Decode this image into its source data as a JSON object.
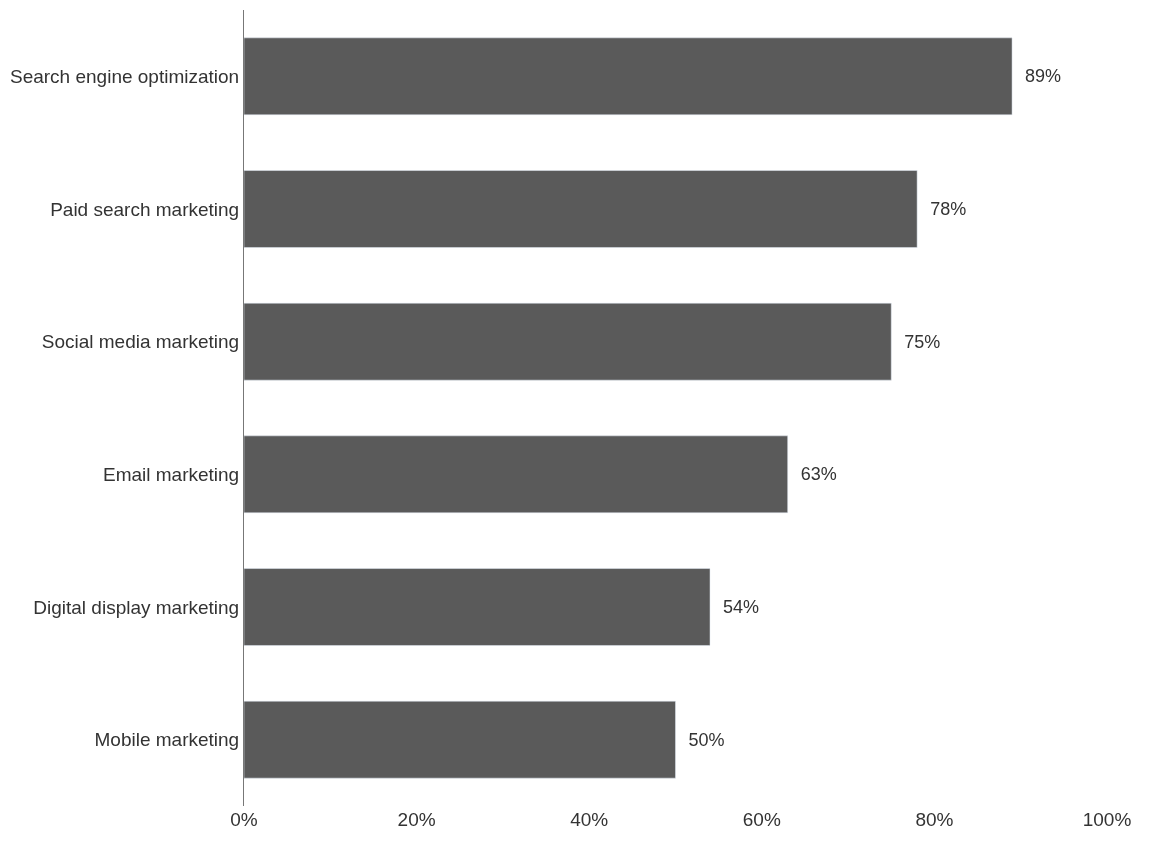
{
  "chart_data": {
    "type": "bar",
    "orientation": "horizontal",
    "categories": [
      "Search engine optimization",
      "Paid search marketing",
      "Social media marketing",
      "Email marketing",
      "Digital display marketing",
      "Mobile marketing"
    ],
    "values": [
      89,
      78,
      75,
      63,
      54,
      50
    ],
    "value_labels": [
      "89%",
      "78%",
      "75%",
      "63%",
      "54%",
      "50%"
    ],
    "color": "#5a5a5a",
    "xlim": [
      0,
      100
    ],
    "xticks": [
      {
        "value": 0,
        "label": "0%"
      },
      {
        "value": 20,
        "label": "20%"
      },
      {
        "value": 40,
        "label": "40%"
      },
      {
        "value": 60,
        "label": "60%"
      },
      {
        "value": 80,
        "label": "80%"
      },
      {
        "value": 100,
        "label": "100%"
      }
    ],
    "legend": false
  }
}
